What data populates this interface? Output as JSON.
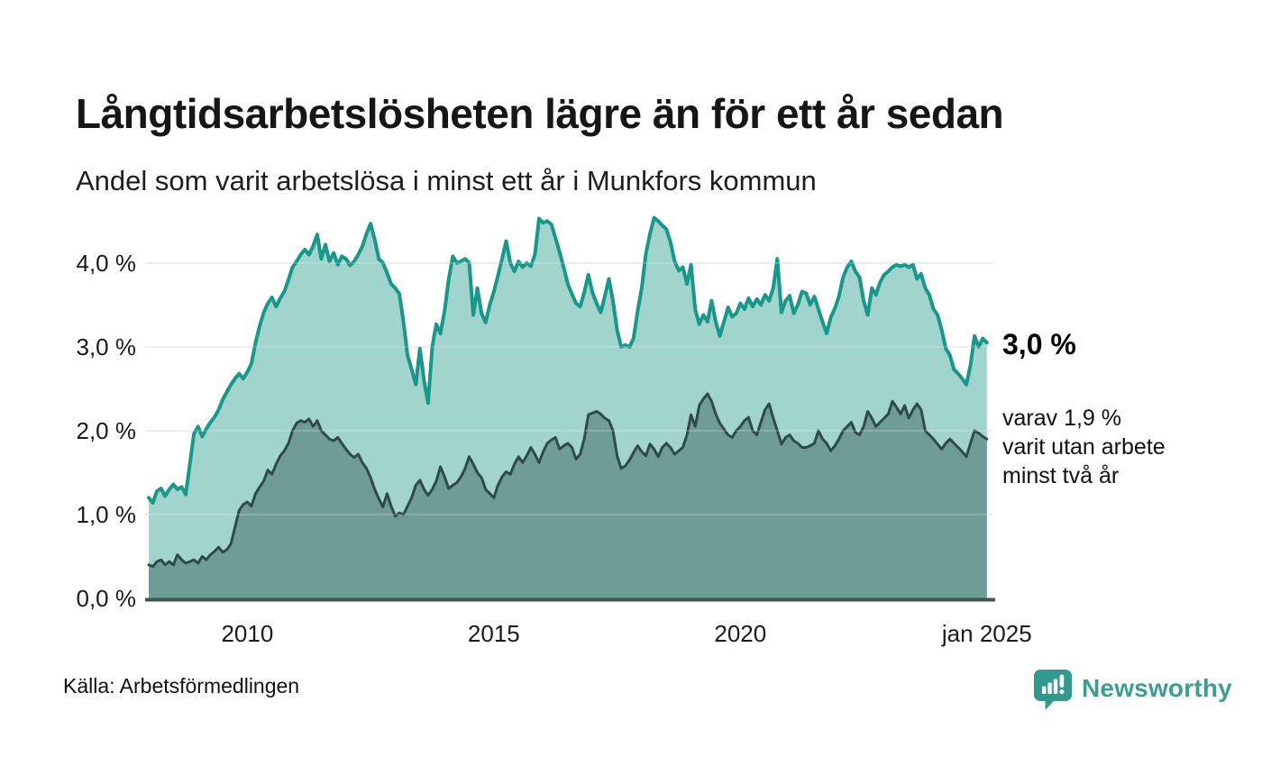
{
  "header": {
    "title": "Långtidsarbetslösheten lägre än för ett år sedan",
    "subtitle": "Andel som varit arbetslösa i minst ett år i Munkfors kommun"
  },
  "annotations": {
    "latest_primary": "3,0 %",
    "latest_secondary_lines": [
      "varav 1,9 %",
      "varit utan arbete",
      "minst två år"
    ]
  },
  "footer": {
    "source": "Källa: Arbetsförmedlingen",
    "brand": "Newsworthy"
  },
  "colors": {
    "accent_teal": "#1A968B",
    "fill_light": "#A1D4CC",
    "line_dark": "#2F4A4B",
    "fill_dark": "#6F9C97",
    "grid": "#E4E4E9",
    "axis": "#3E5755",
    "text": "#1A1A1A",
    "brand_icon": "#33998F",
    "brand_text": "#3E9C94"
  },
  "chart_data": {
    "type": "area",
    "title": "Långtidsarbetslösheten lägre än för ett år sedan",
    "subtitle": "Andel som varit arbetslösa i minst ett år i Munkfors kommun",
    "unit": "%",
    "grid": "horizontal",
    "xlim": [
      2008.0,
      2025.15
    ],
    "ylim": [
      0,
      4.6
    ],
    "x_start": 2008.0,
    "x_step_months": 1,
    "yticks": [
      {
        "value": 0,
        "label": "0,0 %"
      },
      {
        "value": 1,
        "label": "1,0 %"
      },
      {
        "value": 2,
        "label": "2,0 %"
      },
      {
        "value": 3,
        "label": "3,0 %"
      },
      {
        "value": 4,
        "label": "4,0 %"
      }
    ],
    "xticks": [
      {
        "value": 2010,
        "label": "2010"
      },
      {
        "value": 2015,
        "label": "2015"
      },
      {
        "value": 2020,
        "label": "2020"
      },
      {
        "value": 2025,
        "label": "jan 2025"
      }
    ],
    "series": [
      {
        "name": "minst ett år",
        "latest_label": "3,0 %",
        "color": "#1A968B",
        "fill": "#A1D4CC",
        "stroke_width": 4,
        "values": [
          1.2,
          1.14,
          1.28,
          1.31,
          1.22,
          1.3,
          1.36,
          1.3,
          1.33,
          1.24,
          1.6,
          1.96,
          2.05,
          1.93,
          2.02,
          2.1,
          2.16,
          2.25,
          2.37,
          2.46,
          2.55,
          2.62,
          2.68,
          2.62,
          2.7,
          2.8,
          3.05,
          3.25,
          3.41,
          3.52,
          3.59,
          3.48,
          3.58,
          3.66,
          3.8,
          3.95,
          4.02,
          4.1,
          4.16,
          4.1,
          4.2,
          4.34,
          4.05,
          4.22,
          4.02,
          4.12,
          3.98,
          4.08,
          4.05,
          3.97,
          4.02,
          4.1,
          4.2,
          4.35,
          4.47,
          4.28,
          4.05,
          4.0,
          3.88,
          3.75,
          3.7,
          3.63,
          3.3,
          2.9,
          2.73,
          2.55,
          2.98,
          2.6,
          2.33,
          3.0,
          3.27,
          3.16,
          3.43,
          3.8,
          4.08,
          4.0,
          4.02,
          4.05,
          4.0,
          3.38,
          3.7,
          3.4,
          3.29,
          3.5,
          3.66,
          3.85,
          4.05,
          4.26,
          4.0,
          3.9,
          4.02,
          3.95,
          4.0,
          3.96,
          4.1,
          4.53,
          4.48,
          4.5,
          4.46,
          4.3,
          4.13,
          3.95,
          3.75,
          3.63,
          3.52,
          3.48,
          3.65,
          3.86,
          3.65,
          3.52,
          3.41,
          3.6,
          3.81,
          3.55,
          3.2,
          3.0,
          3.02,
          3.0,
          3.1,
          3.43,
          3.7,
          4.11,
          4.35,
          4.54,
          4.5,
          4.45,
          4.4,
          4.25,
          4.02,
          3.91,
          3.95,
          3.75,
          3.98,
          3.45,
          3.27,
          3.38,
          3.3,
          3.55,
          3.3,
          3.13,
          3.3,
          3.47,
          3.36,
          3.4,
          3.52,
          3.45,
          3.58,
          3.48,
          3.57,
          3.5,
          3.62,
          3.55,
          3.7,
          4.05,
          3.41,
          3.55,
          3.61,
          3.4,
          3.5,
          3.66,
          3.64,
          3.5,
          3.6,
          3.45,
          3.3,
          3.16,
          3.35,
          3.46,
          3.6,
          3.83,
          3.95,
          4.02,
          3.9,
          3.83,
          3.55,
          3.38,
          3.7,
          3.62,
          3.77,
          3.86,
          3.9,
          3.95,
          3.98,
          3.96,
          3.98,
          3.95,
          3.98,
          3.81,
          3.87,
          3.7,
          3.62,
          3.45,
          3.38,
          3.2,
          2.98,
          2.9,
          2.73,
          2.68,
          2.62,
          2.55,
          2.78,
          3.13,
          3.0,
          3.1,
          3.05
        ]
      },
      {
        "name": "minst två år",
        "latest_label": "varav 1,9 % varit utan arbete minst två år",
        "color": "#2F4A4B",
        "fill": "#6F9C97",
        "stroke_width": 3,
        "values": [
          0.4,
          0.38,
          0.44,
          0.46,
          0.4,
          0.44,
          0.4,
          0.52,
          0.46,
          0.42,
          0.44,
          0.46,
          0.42,
          0.5,
          0.46,
          0.52,
          0.56,
          0.61,
          0.55,
          0.58,
          0.65,
          0.85,
          1.05,
          1.12,
          1.15,
          1.1,
          1.25,
          1.33,
          1.4,
          1.53,
          1.48,
          1.6,
          1.7,
          1.76,
          1.85,
          2.0,
          2.09,
          2.12,
          2.1,
          2.14,
          2.05,
          2.12,
          2.0,
          1.95,
          1.9,
          1.88,
          1.92,
          1.85,
          1.78,
          1.72,
          1.68,
          1.72,
          1.62,
          1.55,
          1.44,
          1.3,
          1.19,
          1.09,
          1.25,
          1.1,
          0.98,
          1.02,
          1.0,
          1.1,
          1.2,
          1.35,
          1.41,
          1.3,
          1.23,
          1.3,
          1.4,
          1.57,
          1.45,
          1.31,
          1.35,
          1.38,
          1.45,
          1.55,
          1.69,
          1.6,
          1.5,
          1.44,
          1.3,
          1.25,
          1.2,
          1.35,
          1.45,
          1.51,
          1.48,
          1.6,
          1.69,
          1.62,
          1.7,
          1.8,
          1.72,
          1.62,
          1.75,
          1.85,
          1.89,
          1.92,
          1.78,
          1.82,
          1.85,
          1.8,
          1.66,
          1.72,
          1.9,
          2.19,
          2.21,
          2.23,
          2.2,
          2.15,
          2.12,
          2.0,
          1.7,
          1.55,
          1.58,
          1.65,
          1.74,
          1.82,
          1.75,
          1.7,
          1.84,
          1.78,
          1.69,
          1.8,
          1.85,
          1.8,
          1.72,
          1.76,
          1.8,
          1.95,
          2.19,
          2.05,
          2.3,
          2.38,
          2.44,
          2.35,
          2.2,
          2.09,
          2.02,
          1.95,
          1.92,
          2.0,
          2.05,
          2.12,
          2.16,
          2.0,
          1.95,
          2.1,
          2.25,
          2.32,
          2.15,
          2.0,
          1.84,
          1.92,
          1.95,
          1.88,
          1.85,
          1.8,
          1.8,
          1.82,
          1.85,
          2.0,
          1.9,
          1.85,
          1.76,
          1.82,
          1.9,
          2.0,
          2.05,
          2.1,
          1.98,
          1.95,
          2.05,
          2.23,
          2.15,
          2.05,
          2.1,
          2.15,
          2.2,
          2.35,
          2.28,
          2.2,
          2.3,
          2.15,
          2.25,
          2.32,
          2.25,
          2.0,
          1.95,
          1.9,
          1.84,
          1.78,
          1.85,
          1.9,
          1.85,
          1.8,
          1.75,
          1.69,
          1.85,
          2.0,
          1.97,
          1.93,
          1.9
        ]
      }
    ]
  }
}
